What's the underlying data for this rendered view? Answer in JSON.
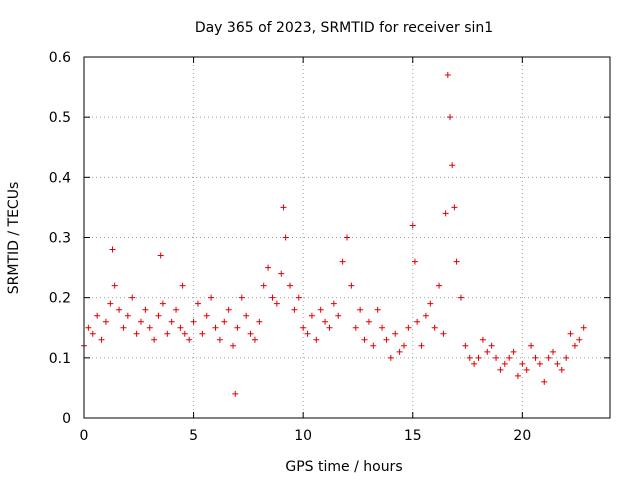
{
  "chart_data": {
    "type": "scatter",
    "title": "Day 365 of 2023, SRMTID for receiver sin1",
    "xlabel": "GPS time / hours",
    "ylabel": "SRMTID / TECUs",
    "xlim": [
      0,
      24
    ],
    "ylim": [
      0,
      0.6
    ],
    "xticks": [
      0,
      5,
      10,
      15,
      20
    ],
    "xtick_labels": [
      "0",
      "5",
      "10",
      "15",
      "20"
    ],
    "yticks": [
      0,
      0.1,
      0.2,
      0.3,
      0.4,
      0.5,
      0.6
    ],
    "ytick_labels": [
      "0",
      "0.1",
      "0.2",
      "0.3",
      "0.4",
      "0.5",
      "0.6"
    ],
    "grid": true,
    "marker": "+",
    "color": "#e00000",
    "series": [
      {
        "name": "sin1",
        "x": [
          0.0,
          0.2,
          0.4,
          0.6,
          0.8,
          1.0,
          1.2,
          1.3,
          1.4,
          1.6,
          1.8,
          2.0,
          2.2,
          2.4,
          2.6,
          2.8,
          3.0,
          3.2,
          3.4,
          3.5,
          3.6,
          3.8,
          4.0,
          4.2,
          4.4,
          4.5,
          4.6,
          4.8,
          5.0,
          5.2,
          5.4,
          5.6,
          5.8,
          6.0,
          6.2,
          6.4,
          6.6,
          6.8,
          6.9,
          7.0,
          7.2,
          7.4,
          7.6,
          7.8,
          8.0,
          8.2,
          8.4,
          8.6,
          8.8,
          9.0,
          9.1,
          9.2,
          9.4,
          9.6,
          9.8,
          10.0,
          10.2,
          10.4,
          10.6,
          10.8,
          11.0,
          11.2,
          11.4,
          11.6,
          11.8,
          12.0,
          12.2,
          12.4,
          12.6,
          12.8,
          13.0,
          13.2,
          13.4,
          13.6,
          13.8,
          14.0,
          14.2,
          14.4,
          14.6,
          14.8,
          15.0,
          15.1,
          15.2,
          15.4,
          15.6,
          15.8,
          16.0,
          16.2,
          16.4,
          16.5,
          16.6,
          16.7,
          16.8,
          16.9,
          17.0,
          17.2,
          17.4,
          17.6,
          17.8,
          18.0,
          18.2,
          18.4,
          18.6,
          18.8,
          19.0,
          19.2,
          19.4,
          19.6,
          19.8,
          20.0,
          20.2,
          20.4,
          20.6,
          20.8,
          21.0,
          21.2,
          21.4,
          21.6,
          21.8,
          22.0,
          22.2,
          22.4,
          22.6,
          22.8
        ],
        "y": [
          0.12,
          0.15,
          0.14,
          0.17,
          0.13,
          0.16,
          0.19,
          0.28,
          0.22,
          0.18,
          0.15,
          0.17,
          0.2,
          0.14,
          0.16,
          0.18,
          0.15,
          0.13,
          0.17,
          0.27,
          0.19,
          0.14,
          0.16,
          0.18,
          0.15,
          0.22,
          0.14,
          0.13,
          0.16,
          0.19,
          0.14,
          0.17,
          0.2,
          0.15,
          0.13,
          0.16,
          0.18,
          0.12,
          0.04,
          0.15,
          0.2,
          0.17,
          0.14,
          0.13,
          0.16,
          0.22,
          0.25,
          0.2,
          0.19,
          0.24,
          0.35,
          0.3,
          0.22,
          0.18,
          0.2,
          0.15,
          0.14,
          0.17,
          0.13,
          0.18,
          0.16,
          0.15,
          0.19,
          0.17,
          0.26,
          0.3,
          0.22,
          0.15,
          0.18,
          0.13,
          0.16,
          0.12,
          0.18,
          0.15,
          0.13,
          0.1,
          0.14,
          0.11,
          0.12,
          0.15,
          0.32,
          0.26,
          0.16,
          0.12,
          0.17,
          0.19,
          0.15,
          0.22,
          0.14,
          0.34,
          0.57,
          0.5,
          0.42,
          0.35,
          0.26,
          0.2,
          0.12,
          0.1,
          0.09,
          0.1,
          0.13,
          0.11,
          0.12,
          0.1,
          0.08,
          0.09,
          0.1,
          0.11,
          0.07,
          0.09,
          0.08,
          0.12,
          0.1,
          0.09,
          0.06,
          0.1,
          0.11,
          0.09,
          0.08,
          0.1,
          0.14,
          0.12,
          0.13,
          0.15
        ]
      }
    ]
  }
}
